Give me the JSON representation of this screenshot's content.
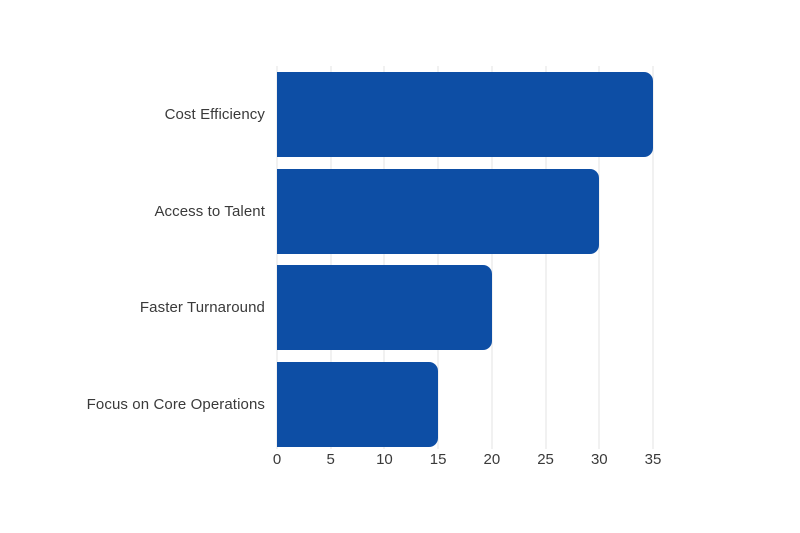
{
  "chart_data": {
    "type": "bar",
    "orientation": "horizontal",
    "title": "",
    "xlabel": "",
    "ylabel": "",
    "categories": [
      "Cost Efficiency",
      "Access to Talent",
      "Faster Turnaround",
      "Focus on Core Operations"
    ],
    "values": [
      35,
      30,
      20,
      15
    ],
    "xlim": [
      0,
      35
    ],
    "xticks": [
      0,
      5,
      10,
      15,
      20,
      25,
      30,
      35
    ],
    "grid": true,
    "legend": false,
    "colors": {
      "bar": "#0d4ea5",
      "gridline": "#e3e3e3",
      "text": "#3a3a3a",
      "background": "#ffffff"
    }
  }
}
